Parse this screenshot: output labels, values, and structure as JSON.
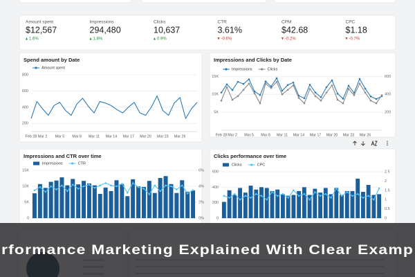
{
  "kpis": [
    {
      "label": "Amount spent",
      "value": "$12,567",
      "change": "1.6%"
    },
    {
      "label": "Impressions",
      "value": "294,480",
      "change": "1.8%"
    },
    {
      "label": "Clicks",
      "value": "10,637",
      "change": "0.9%"
    },
    {
      "label": "CTR",
      "value": "3.61%",
      "change": "-0.6%"
    },
    {
      "label": "CPM",
      "value": "$42.68",
      "change": "-0.2%"
    },
    {
      "label": "CPC",
      "value": "$1.18",
      "change": "-0.7%"
    }
  ],
  "banner": {
    "text": "rformance Marketing Explained With Clear Examp"
  },
  "chart_data": [
    {
      "type": "line",
      "title": "Spend amount by Date",
      "grid": true,
      "markers": false,
      "categories": [
        "Feb 28",
        null,
        "Mar 2",
        null,
        null,
        "Mar 5",
        null,
        null,
        "Mar 8",
        null,
        null,
        "Mar 11",
        null,
        null,
        "Mar 14",
        null,
        null,
        "Mar 17",
        null,
        null,
        "Mar 20",
        null,
        null,
        "Mar 23",
        null,
        null,
        "Mar 26",
        null,
        null,
        null
      ],
      "series": [
        {
          "name": "Amount spent",
          "color": "#2a7ab8",
          "values": [
            260,
            470,
            380,
            300,
            420,
            460,
            360,
            300,
            440,
            510,
            410,
            330,
            470,
            450,
            420,
            370,
            330,
            400,
            460,
            330,
            300,
            400,
            540,
            360,
            300,
            450,
            520,
            260,
            380,
            460
          ]
        }
      ],
      "ylim": [
        100,
        850
      ],
      "yticks": [
        200,
        400,
        600,
        800
      ]
    },
    {
      "type": "line",
      "title": "Impressions and Clicks by Date",
      "grid": true,
      "markers": true,
      "categories": [
        "Feb 28",
        null,
        "Mar 2",
        null,
        null,
        "Mar 5",
        null,
        null,
        "Mar 8",
        null,
        null,
        "Mar 11",
        null,
        null,
        "Mar 14",
        null,
        null,
        "Mar 17",
        null,
        null,
        "Mar 20",
        null,
        null,
        "Mar 23",
        null,
        null,
        "Mar 26",
        null,
        null,
        null
      ],
      "series": [
        {
          "name": "Impressions",
          "color": "#2a7ab8",
          "values": [
            10500,
            12800,
            11200,
            13500,
            12900,
            14200,
            10800,
            9800,
            13600,
            12200,
            14500,
            11000,
            12600,
            13300,
            9600,
            8900,
            12700,
            10500,
            9200,
            12000,
            13900,
            10200,
            8800,
            12400,
            10400,
            14300,
            11600,
            9400,
            8700,
            9500
          ]
        },
        {
          "name": "Clicks",
          "color": "#8a8a8a",
          "axis": "y2",
          "values": [
            330,
            480,
            340,
            380,
            450,
            520,
            410,
            300,
            520,
            470,
            540,
            400,
            450,
            500,
            360,
            300,
            460,
            380,
            330,
            420,
            500,
            340,
            300,
            460,
            390,
            520,
            420,
            330,
            300,
            390
          ]
        }
      ],
      "ylim": [
        0,
        17000
      ],
      "yticks": [
        {
          "value": 5000,
          "label": "5K"
        },
        {
          "value": 10000,
          "label": "10K"
        },
        {
          "value": 15000,
          "label": "15K"
        }
      ],
      "y2lim": [
        0,
        680
      ],
      "y2ticks": [
        200,
        400,
        600
      ]
    },
    {
      "type": "combo",
      "title": "Impressions and CTR over time",
      "grid": true,
      "markers": true,
      "series": [
        {
          "name": "Impressions",
          "type": "bar",
          "color": "#1b5e99",
          "values": [
            7800,
            10700,
            9500,
            11400,
            11800,
            12800,
            10300,
            12300,
            10600,
            11700,
            10900,
            10300,
            7600,
            9600,
            8500,
            11900,
            10700,
            6900,
            12200,
            10000,
            9800,
            11700,
            7900,
            12600,
            13200,
            10700,
            7900,
            11900,
            8300,
            8700
          ]
        },
        {
          "name": "CTR",
          "type": "line",
          "color": "#4fc3f7",
          "axis": "y2",
          "values": [
            3.5,
            3.9,
            3.3,
            4.0,
            3.6,
            4.1,
            3.4,
            4.2,
            3.7,
            4.0,
            4.2,
            3.8,
            4.1,
            4.4,
            4.1,
            4.0,
            4.3,
            3.2,
            4.4,
            3.9,
            3.7,
            3.0,
            4.1,
            3.4,
            4.1,
            4.0,
            3.6,
            4.1,
            3.1,
            3.5
          ]
        }
      ],
      "ylim": [
        0,
        15000
      ],
      "yticks": [
        0,
        {
          "value": 5000,
          "label": "5K"
        },
        {
          "value": 10000,
          "label": "10K"
        },
        {
          "value": 15000,
          "label": "15K"
        }
      ],
      "y2lim": [
        0,
        6
      ],
      "y2ticks": [
        {
          "value": 0,
          "label": "0%"
        },
        {
          "value": 2,
          "label": "2%"
        },
        {
          "value": 4,
          "label": "4%"
        },
        {
          "value": 6,
          "label": "6%"
        }
      ]
    },
    {
      "type": "combo",
      "title": "Clicks performance over time",
      "grid": true,
      "markers": true,
      "series": [
        {
          "name": "Clicks",
          "type": "bar",
          "color": "#1b5e99",
          "values": [
            210,
            360,
            300,
            390,
            330,
            420,
            370,
            400,
            390,
            350,
            370,
            310,
            290,
            300,
            350,
            400,
            300,
            380,
            330,
            390,
            310,
            390,
            300,
            350,
            350,
            510,
            340,
            430,
            300,
            310
          ]
        },
        {
          "name": "CPC",
          "type": "line",
          "color": "#4fc3f7",
          "axis": "y2",
          "values": [
            1.2,
            1.1,
            1.3,
            1.0,
            1.2,
            1.1,
            1.3,
            1.2,
            1.0,
            1.4,
            1.2,
            1.3,
            1.1,
            1.5,
            1.2,
            1.3,
            1.0,
            1.4,
            1.2,
            1.3,
            1.1,
            1.6,
            1.2,
            1.4,
            1.2,
            1.3,
            1.1,
            1.2,
            1.0,
            1.6
          ]
        }
      ],
      "ylim": [
        0,
        600
      ],
      "yticks": [
        0,
        200,
        400,
        600
      ],
      "y2lim": [
        0,
        2.5
      ],
      "y2ticks": [
        0,
        0.5,
        1,
        1.5,
        2,
        2.5
      ]
    }
  ]
}
